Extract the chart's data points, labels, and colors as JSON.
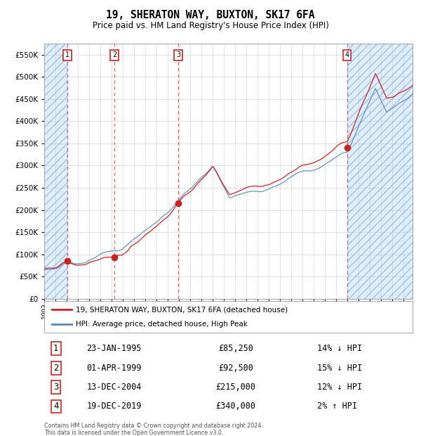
{
  "title": "19, SHERATON WAY, BUXTON, SK17 6FA",
  "subtitle": "Price paid vs. HM Land Registry's House Price Index (HPI)",
  "legend_line1": "19, SHERATON WAY, BUXTON, SK17 6FA (detached house)",
  "legend_line2": "HPI: Average price, detached house, High Peak",
  "footer1": "Contains HM Land Registry data © Crown copyright and database right 2024.",
  "footer2": "This data is licensed under the Open Government Licence v3.0.",
  "sale_years": [
    1995.06,
    1999.25,
    2004.95,
    2019.97
  ],
  "sale_prices": [
    85250,
    92500,
    215000,
    340000
  ],
  "table_rows": [
    [
      "1",
      "23-JAN-1995",
      "£85,250",
      "14% ↓ HPI"
    ],
    [
      "2",
      "01-APR-1999",
      "£92,500",
      "15% ↓ HPI"
    ],
    [
      "3",
      "13-DEC-2004",
      "£215,000",
      "12% ↓ HPI"
    ],
    [
      "4",
      "19-DEC-2019",
      "£340,000",
      "2% ↑ HPI"
    ]
  ],
  "hpi_color": "#5588bb",
  "price_color": "#cc2222",
  "bg_color": "#ddeeff",
  "plot_bg": "#ffffff",
  "grid_color": "#cccccc",
  "ylim": [
    0,
    575000
  ],
  "yticks": [
    0,
    50000,
    100000,
    150000,
    200000,
    250000,
    300000,
    350000,
    400000,
    450000,
    500000,
    550000
  ],
  "xlim_start": 1993.0,
  "xlim_end": 2025.8,
  "title_fontsize": 10.5,
  "subtitle_fontsize": 8.5
}
